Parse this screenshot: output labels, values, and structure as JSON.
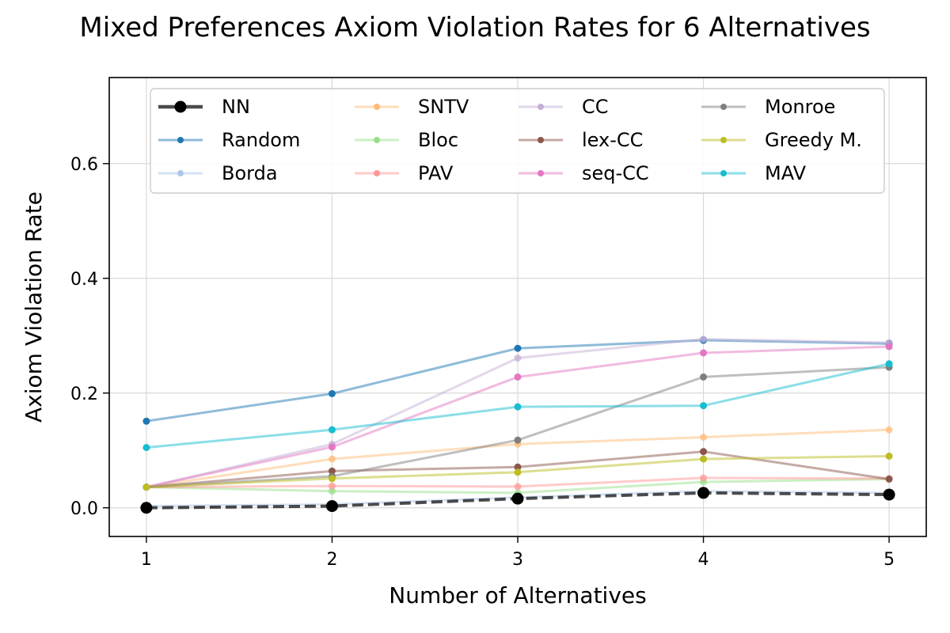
{
  "chart_data": {
    "type": "line",
    "title": "Mixed Preferences Axiom Violation Rates for 6 Alternatives",
    "xlabel": "Number of Alternatives",
    "ylabel": "Axiom Violation Rate",
    "x": [
      1,
      2,
      3,
      4,
      5
    ],
    "xlim": [
      0.8,
      5.2
    ],
    "ylim": [
      -0.05,
      0.75
    ],
    "xticks": [
      "1",
      "2",
      "3",
      "4",
      "5"
    ],
    "yticks": [
      "0.0",
      "0.2",
      "0.4",
      "0.6"
    ],
    "ytick_values": [
      0.0,
      0.2,
      0.4,
      0.6
    ],
    "grid": true,
    "legend": {
      "placement": "upper center",
      "columns": 4
    },
    "series": [
      {
        "name": "NN",
        "color": "#000000",
        "values": [
          0.0,
          0.003,
          0.016,
          0.026,
          0.023
        ]
      },
      {
        "name": "Random",
        "color": "#1f77b4",
        "values": [
          0.151,
          0.199,
          0.278,
          0.292,
          0.286
        ]
      },
      {
        "name": "Borda",
        "color": "#aec7e8",
        "values": [
          0.003,
          0.006,
          0.018,
          0.029,
          0.026
        ]
      },
      {
        "name": "SNTV",
        "color": "#ffbb78",
        "values": [
          0.036,
          0.085,
          0.111,
          0.123,
          0.136
        ]
      },
      {
        "name": "Bloc",
        "color": "#98df8a",
        "values": [
          0.036,
          0.029,
          0.026,
          0.045,
          0.05
        ]
      },
      {
        "name": "PAV",
        "color": "#ff9896",
        "values": [
          0.036,
          0.038,
          0.037,
          0.052,
          0.051
        ]
      },
      {
        "name": "CC",
        "color": "#c5b0d5",
        "values": [
          0.036,
          0.111,
          0.261,
          0.294,
          0.288
        ]
      },
      {
        "name": "lex-CC",
        "color": "#8c564b",
        "values": [
          0.036,
          0.064,
          0.071,
          0.098,
          0.05
        ]
      },
      {
        "name": "seq-CC",
        "color": "#e377c2",
        "values": [
          0.036,
          0.106,
          0.228,
          0.27,
          0.281
        ]
      },
      {
        "name": "Monroe",
        "color": "#7f7f7f",
        "values": [
          0.036,
          0.055,
          0.118,
          0.228,
          0.245
        ]
      },
      {
        "name": "Greedy M.",
        "color": "#bcbd22",
        "values": [
          0.036,
          0.051,
          0.062,
          0.085,
          0.09
        ]
      },
      {
        "name": "MAV",
        "color": "#17becf",
        "values": [
          0.105,
          0.136,
          0.176,
          0.178,
          0.251
        ]
      }
    ]
  }
}
